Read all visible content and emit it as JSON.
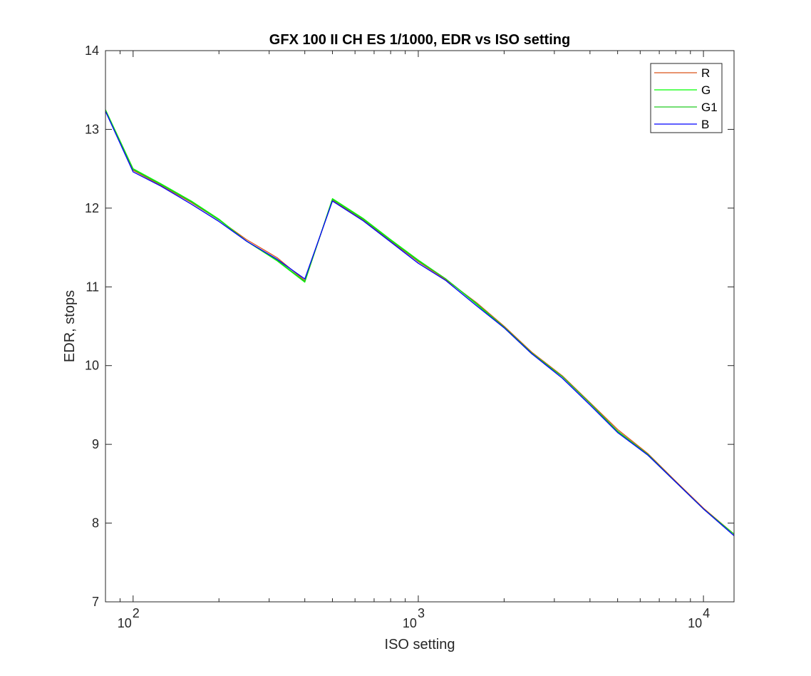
{
  "chart_data": {
    "type": "line",
    "title": "GFX 100 II CH ES 1/1000, EDR vs ISO setting",
    "xlabel": "ISO setting",
    "ylabel": "EDR, stops",
    "xscale": "log",
    "xlim": [
      80,
      12800
    ],
    "ylim": [
      7,
      14
    ],
    "xticks": [
      {
        "value": 100,
        "base": "10",
        "exp": "2"
      },
      {
        "value": 1000,
        "base": "10",
        "exp": "3"
      },
      {
        "value": 10000,
        "base": "10",
        "exp": "4"
      }
    ],
    "yticks": [
      {
        "value": 7,
        "label": "7"
      },
      {
        "value": 8,
        "label": "8"
      },
      {
        "value": 9,
        "label": "9"
      },
      {
        "value": 10,
        "label": "10"
      },
      {
        "value": 11,
        "label": "11"
      },
      {
        "value": 12,
        "label": "12"
      },
      {
        "value": 13,
        "label": "13"
      },
      {
        "value": 14,
        "label": "14"
      }
    ],
    "grid": false,
    "legend_position": "top-right",
    "x": [
      80,
      100,
      125,
      160,
      200,
      250,
      320,
      400,
      500,
      640,
      800,
      1000,
      1250,
      1600,
      2000,
      2500,
      3200,
      4000,
      5000,
      6400,
      8000,
      10000,
      12800
    ],
    "series": [
      {
        "name": "R",
        "color": "#d95319",
        "values": [
          13.24,
          12.48,
          12.29,
          12.07,
          11.85,
          11.6,
          11.37,
          11.08,
          12.1,
          11.85,
          11.58,
          11.32,
          11.09,
          10.8,
          10.5,
          10.17,
          9.87,
          9.53,
          9.19,
          8.88,
          8.53,
          8.19,
          7.86
        ]
      },
      {
        "name": "G",
        "color": "#00ff00",
        "values": [
          13.25,
          12.5,
          12.31,
          12.09,
          11.86,
          11.58,
          11.33,
          11.06,
          12.12,
          11.87,
          11.6,
          11.34,
          11.1,
          10.78,
          10.48,
          10.15,
          9.86,
          9.52,
          9.16,
          8.86,
          8.52,
          8.18,
          7.86
        ]
      },
      {
        "name": "G1",
        "color": "#22c922",
        "values": [
          13.24,
          12.49,
          12.3,
          12.08,
          11.85,
          11.58,
          11.34,
          11.07,
          12.11,
          11.86,
          11.59,
          11.33,
          11.1,
          10.79,
          10.49,
          10.16,
          9.86,
          9.52,
          9.17,
          8.87,
          8.52,
          8.18,
          7.86
        ]
      },
      {
        "name": "B",
        "color": "#0000ff",
        "values": [
          13.23,
          12.46,
          12.28,
          12.05,
          11.83,
          11.58,
          11.35,
          11.1,
          12.09,
          11.84,
          11.57,
          11.3,
          11.08,
          10.76,
          10.48,
          10.15,
          9.84,
          9.5,
          9.15,
          8.86,
          8.52,
          8.18,
          7.84
        ]
      }
    ]
  }
}
